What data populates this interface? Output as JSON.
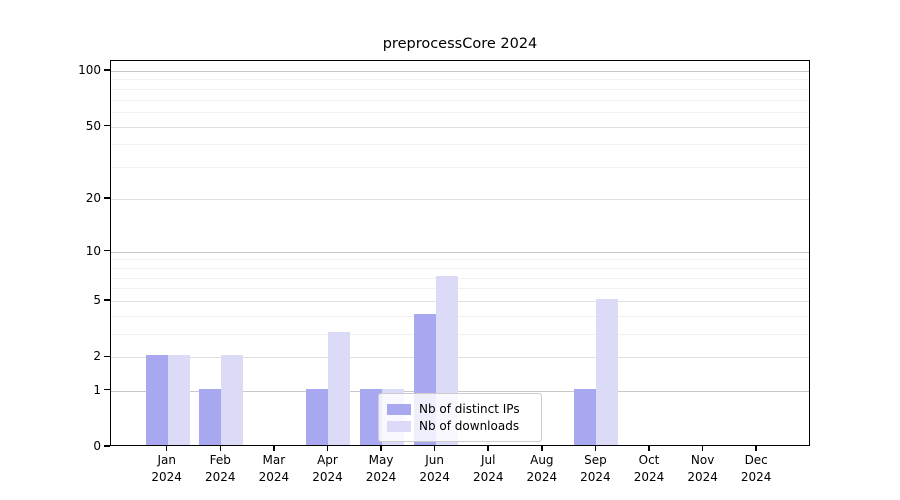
{
  "title": "preprocessCore 2024",
  "chart_data": {
    "type": "bar",
    "title": "preprocessCore 2024",
    "categories": [
      "Jan",
      "Feb",
      "Mar",
      "Apr",
      "May",
      "Jun",
      "Jul",
      "Aug",
      "Sep",
      "Oct",
      "Nov",
      "Dec"
    ],
    "year_label": "2024",
    "series": [
      {
        "name": "Nb of distinct IPs",
        "color": "#a8a8f0",
        "values": [
          2,
          1,
          0,
          1,
          1,
          4,
          0,
          0,
          1,
          0,
          0,
          0
        ]
      },
      {
        "name": "Nb of downloads",
        "color": "#dbdbf8",
        "values": [
          2,
          2,
          0,
          3,
          1,
          7,
          0,
          0,
          5,
          0,
          0,
          0
        ]
      }
    ],
    "xlabel": "",
    "ylabel": "",
    "y_axis": {
      "scale": "log1p",
      "tick_values": [
        0,
        1,
        2,
        5,
        10,
        20,
        50,
        100
      ],
      "power_ticks": [
        1,
        10,
        100
      ],
      "minor_tick_values": [
        3,
        4,
        6,
        7,
        8,
        9,
        30,
        40,
        60,
        70,
        80,
        90
      ],
      "display_max": 113
    },
    "grid": true,
    "legend": {
      "position": "bottom-center",
      "entries": [
        "Nb of distinct IPs",
        "Nb of downloads"
      ]
    }
  }
}
